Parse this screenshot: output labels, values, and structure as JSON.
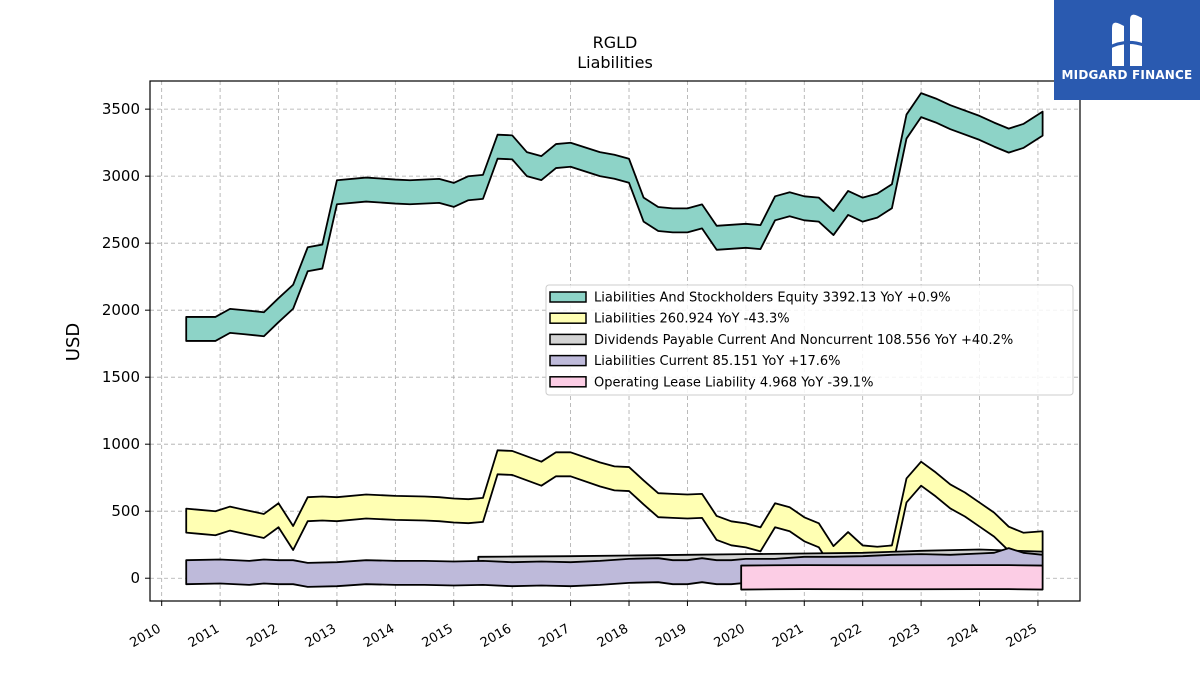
{
  "chart_data": {
    "type": "area",
    "title": "RGLD",
    "subtitle": "Liabilities",
    "ylabel": "USD",
    "xlabel": "",
    "xlim": [
      2009.8,
      2025.72
    ],
    "ylim": [
      -170,
      3710
    ],
    "yticks": [
      0,
      500,
      1000,
      1500,
      2000,
      2500,
      3000,
      3500
    ],
    "xticks": [
      "2010",
      "2011",
      "2012",
      "2013",
      "2014",
      "2015",
      "2016",
      "2017",
      "2018",
      "2019",
      "2020",
      "2021",
      "2022",
      "2023",
      "2024",
      "2025"
    ],
    "grid": true,
    "legend_position": "center-right",
    "series": [
      {
        "name": "Liabilities And Stockholders Equity",
        "legend": "Liabilities And Stockholders Equity  3392.13 YoY +0.9%",
        "color": "#8dd3c7",
        "points": [
          [
            2010.42,
            1860
          ],
          [
            2010.67,
            1860
          ],
          [
            2010.92,
            1860
          ],
          [
            2011.17,
            1920
          ],
          [
            2011.42,
            1910
          ],
          [
            2011.75,
            1895
          ],
          [
            2012.0,
            2000
          ],
          [
            2012.25,
            2100
          ],
          [
            2012.5,
            2380
          ],
          [
            2012.75,
            2400
          ],
          [
            2013.0,
            2880
          ],
          [
            2013.5,
            2900
          ],
          [
            2014.0,
            2885
          ],
          [
            2014.25,
            2880
          ],
          [
            2014.75,
            2890
          ],
          [
            2015.0,
            2860
          ],
          [
            2015.25,
            2910
          ],
          [
            2015.5,
            2920
          ],
          [
            2015.75,
            3220
          ],
          [
            2016.0,
            3215
          ],
          [
            2016.25,
            3090
          ],
          [
            2016.5,
            3060
          ],
          [
            2016.75,
            3150
          ],
          [
            2017.0,
            3160
          ],
          [
            2017.5,
            3090
          ],
          [
            2017.75,
            3070
          ],
          [
            2018.0,
            3040
          ],
          [
            2018.25,
            2750
          ],
          [
            2018.5,
            2680
          ],
          [
            2018.75,
            2670
          ],
          [
            2019.0,
            2670
          ],
          [
            2019.25,
            2700
          ],
          [
            2019.5,
            2540
          ],
          [
            2020.0,
            2555
          ],
          [
            2020.25,
            2545
          ],
          [
            2020.5,
            2760
          ],
          [
            2020.75,
            2790
          ],
          [
            2021.0,
            2760
          ],
          [
            2021.25,
            2750
          ],
          [
            2021.5,
            2650
          ],
          [
            2021.75,
            2800
          ],
          [
            2022.0,
            2750
          ],
          [
            2022.25,
            2780
          ],
          [
            2022.5,
            2850
          ],
          [
            2022.75,
            3370
          ],
          [
            2023.0,
            3530
          ],
          [
            2023.25,
            3490
          ],
          [
            2023.5,
            3440
          ],
          [
            2024.0,
            3360
          ],
          [
            2024.25,
            3310
          ],
          [
            2024.5,
            3265
          ],
          [
            2024.75,
            3300
          ],
          [
            2025.08,
            3392
          ]
        ]
      },
      {
        "name": "Liabilities",
        "legend": "Liabilities  260.924 YoY -43.3%",
        "color": "#ffffb3",
        "points": [
          [
            2010.42,
            430
          ],
          [
            2010.67,
            420
          ],
          [
            2010.92,
            410
          ],
          [
            2011.17,
            445
          ],
          [
            2011.42,
            420
          ],
          [
            2011.75,
            390
          ],
          [
            2012.0,
            470
          ],
          [
            2012.25,
            300
          ],
          [
            2012.5,
            515
          ],
          [
            2012.75,
            520
          ],
          [
            2013.0,
            515
          ],
          [
            2013.5,
            535
          ],
          [
            2014.0,
            525
          ],
          [
            2014.5,
            520
          ],
          [
            2014.75,
            515
          ],
          [
            2015.0,
            505
          ],
          [
            2015.25,
            500
          ],
          [
            2015.5,
            510
          ],
          [
            2015.75,
            865
          ],
          [
            2016.0,
            860
          ],
          [
            2016.5,
            780
          ],
          [
            2016.75,
            850
          ],
          [
            2017.0,
            850
          ],
          [
            2017.5,
            775
          ],
          [
            2017.75,
            745
          ],
          [
            2018.0,
            740
          ],
          [
            2018.25,
            640
          ],
          [
            2018.5,
            545
          ],
          [
            2018.75,
            540
          ],
          [
            2019.0,
            535
          ],
          [
            2019.25,
            540
          ],
          [
            2019.5,
            375
          ],
          [
            2019.75,
            335
          ],
          [
            2020.0,
            320
          ],
          [
            2020.25,
            290
          ],
          [
            2020.5,
            470
          ],
          [
            2020.75,
            440
          ],
          [
            2021.0,
            365
          ],
          [
            2021.25,
            320
          ],
          [
            2021.5,
            150
          ],
          [
            2021.75,
            255
          ],
          [
            2022.0,
            155
          ],
          [
            2022.25,
            145
          ],
          [
            2022.5,
            155
          ],
          [
            2022.75,
            655
          ],
          [
            2023.0,
            780
          ],
          [
            2023.25,
            700
          ],
          [
            2023.5,
            610
          ],
          [
            2023.75,
            550
          ],
          [
            2024.0,
            475
          ],
          [
            2024.25,
            400
          ],
          [
            2024.5,
            295
          ],
          [
            2024.75,
            250
          ],
          [
            2025.08,
            261
          ]
        ]
      },
      {
        "name": "Dividends Payable Current And Noncurrent",
        "legend": "Dividends Payable Current And Noncurrent  108.556 YoY +40.2%",
        "color": "#d3d3d3",
        "points": [
          [
            2015.42,
            70
          ],
          [
            2016.0,
            72
          ],
          [
            2017.0,
            75
          ],
          [
            2018.0,
            80
          ],
          [
            2019.0,
            85
          ],
          [
            2020.0,
            90
          ],
          [
            2021.0,
            95
          ],
          [
            2022.0,
            100
          ],
          [
            2023.0,
            115
          ],
          [
            2024.0,
            125
          ],
          [
            2025.08,
            108.6
          ]
        ]
      },
      {
        "name": "Liabilities Current",
        "legend": "Liabilities Current  85.151 YoY +17.6%",
        "color": "#bebada",
        "points": [
          [
            2010.42,
            45
          ],
          [
            2011.0,
            50
          ],
          [
            2011.5,
            40
          ],
          [
            2011.75,
            50
          ],
          [
            2012.0,
            45
          ],
          [
            2012.25,
            45
          ],
          [
            2012.5,
            25
          ],
          [
            2013.0,
            30
          ],
          [
            2013.5,
            45
          ],
          [
            2014.0,
            40
          ],
          [
            2014.5,
            40
          ],
          [
            2015.0,
            35
          ],
          [
            2015.5,
            40
          ],
          [
            2016.0,
            30
          ],
          [
            2016.5,
            35
          ],
          [
            2017.0,
            30
          ],
          [
            2017.5,
            40
          ],
          [
            2018.0,
            55
          ],
          [
            2018.5,
            60
          ],
          [
            2018.75,
            45
          ],
          [
            2019.0,
            45
          ],
          [
            2019.25,
            60
          ],
          [
            2019.5,
            45
          ],
          [
            2019.75,
            45
          ],
          [
            2020.0,
            55
          ],
          [
            2020.5,
            55
          ],
          [
            2021.0,
            70
          ],
          [
            2021.5,
            70
          ],
          [
            2022.0,
            75
          ],
          [
            2022.5,
            85
          ],
          [
            2023.0,
            90
          ],
          [
            2023.5,
            85
          ],
          [
            2024.0,
            95
          ],
          [
            2024.25,
            100
          ],
          [
            2024.5,
            135
          ],
          [
            2024.75,
            100
          ],
          [
            2025.08,
            85.2
          ]
        ]
      },
      {
        "name": "Operating Lease Liability",
        "legend": "Operating Lease Liability  4.968 YoY -39.1%",
        "color": "#fccde5",
        "points": [
          [
            2019.92,
            5
          ],
          [
            2020.5,
            7
          ],
          [
            2021.0,
            8
          ],
          [
            2022.0,
            7
          ],
          [
            2023.0,
            7
          ],
          [
            2024.0,
            8
          ],
          [
            2024.5,
            8
          ],
          [
            2025.08,
            5
          ]
        ]
      }
    ]
  },
  "logo": {
    "brand": "MIDGARD FINANCE",
    "color": "#2a5ab0"
  }
}
